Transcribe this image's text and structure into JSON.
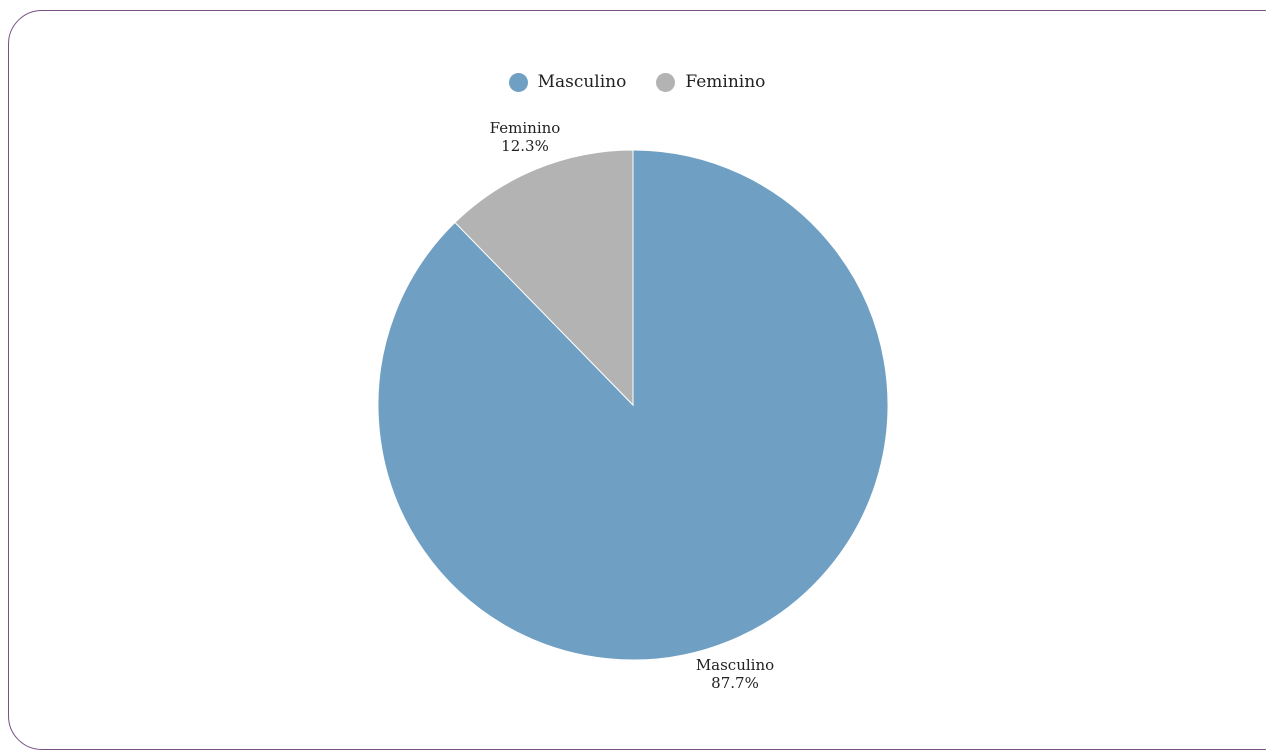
{
  "colors": {
    "masculino": "#6fa0c3",
    "feminino": "#b3b3b3",
    "frame": "#7a4f86"
  },
  "legend": {
    "items": [
      {
        "label": "Masculino",
        "color": "#6fa0c3"
      },
      {
        "label": "Feminino",
        "color": "#b3b3b3"
      }
    ],
    "placement": "top-center"
  },
  "chart_data": {
    "type": "pie",
    "title": "",
    "start": "12 o'clock, clockwise",
    "slices": [
      {
        "label": "Masculino",
        "value": 87.7,
        "display": "87.7%",
        "color": "#6fa0c3"
      },
      {
        "label": "Feminino",
        "value": 12.3,
        "display": "12.3%",
        "color": "#b3b3b3"
      }
    ]
  }
}
